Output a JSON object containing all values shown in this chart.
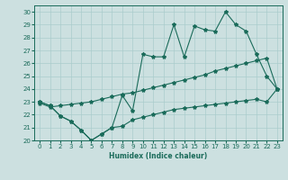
{
  "xlabel": "Humidex (Indice chaleur)",
  "xlim": [
    -0.5,
    23.5
  ],
  "ylim": [
    20,
    30.5
  ],
  "yticks": [
    20,
    21,
    22,
    23,
    24,
    25,
    26,
    27,
    28,
    29,
    30
  ],
  "xticks": [
    0,
    1,
    2,
    3,
    4,
    5,
    6,
    7,
    8,
    9,
    10,
    11,
    12,
    13,
    14,
    15,
    16,
    17,
    18,
    19,
    20,
    21,
    22,
    23
  ],
  "bg_color": "#cce0e0",
  "grid_color": "#aacccc",
  "line_color": "#1a6b5a",
  "line_top": [
    23.0,
    22.7,
    21.9,
    21.5,
    20.8,
    20.0,
    20.5,
    21.0,
    23.5,
    22.3,
    26.7,
    26.5,
    26.5,
    29.0,
    26.5,
    28.9,
    28.6,
    28.5,
    30.0,
    29.0,
    28.5,
    26.7,
    25.0,
    24.0
  ],
  "line_mid": [
    22.9,
    22.6,
    22.7,
    22.8,
    22.9,
    23.0,
    23.2,
    23.4,
    23.6,
    23.7,
    23.9,
    24.1,
    24.3,
    24.5,
    24.7,
    24.9,
    25.1,
    25.4,
    25.6,
    25.8,
    26.0,
    26.2,
    26.4,
    24.0
  ],
  "line_bot": [
    23.0,
    22.7,
    21.9,
    21.5,
    20.8,
    20.0,
    20.5,
    21.0,
    21.1,
    21.6,
    21.8,
    22.0,
    22.2,
    22.4,
    22.5,
    22.6,
    22.7,
    22.8,
    22.9,
    23.0,
    23.1,
    23.2,
    23.0,
    24.0
  ]
}
